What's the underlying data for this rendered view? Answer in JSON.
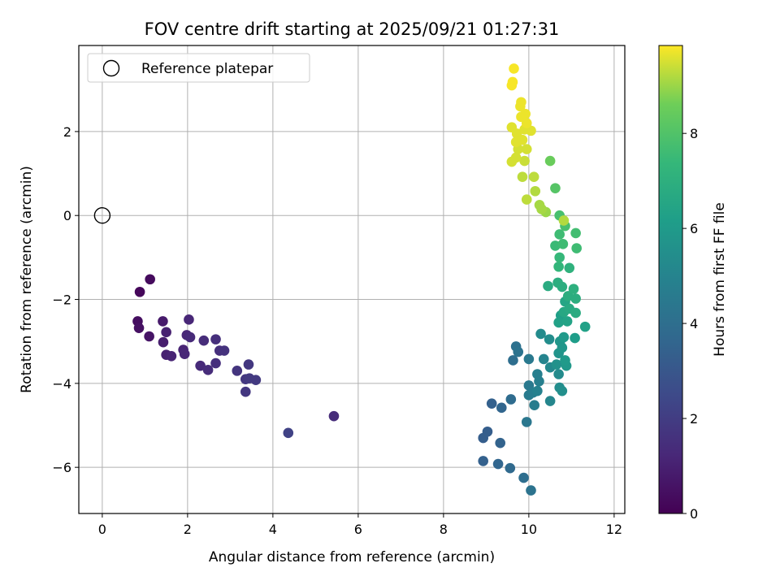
{
  "chart_data": {
    "type": "scatter",
    "title": "FOV centre drift starting at 2025/09/21 01:27:31",
    "xlabel": "Angular distance from reference (arcmin)",
    "ylabel": "Rotation from reference (arcmin)",
    "xlim": [
      -0.55,
      12.25
    ],
    "ylim": [
      -7.1,
      4.05
    ],
    "x_ticks": [
      0,
      2,
      4,
      6,
      8,
      10,
      12
    ],
    "x_tick_labels": [
      "0",
      "2",
      "4",
      "6",
      "8",
      "10",
      "12"
    ],
    "y_ticks": [
      -6,
      -4,
      -2,
      0,
      2
    ],
    "y_tick_labels": [
      "−6",
      "−4",
      "−2",
      "0",
      "2"
    ],
    "grid": true,
    "legend": {
      "placement": "top-left",
      "entries": [
        "Reference platepar"
      ]
    },
    "reference_point": {
      "x": 0,
      "y": 0,
      "label": "Reference platepar"
    },
    "colorbar": {
      "label": "Hours from first FF file",
      "range": [
        0,
        9.85
      ],
      "ticks": [
        0,
        2,
        4,
        6,
        8
      ],
      "tick_labels": [
        "0",
        "2",
        "4",
        "6",
        "8"
      ],
      "colormap": "viridis"
    },
    "series": [
      {
        "name": "Hours from first FF file",
        "points": [
          {
            "x": 0.88,
            "y": -1.82,
            "c": 0.2
          },
          {
            "x": 1.12,
            "y": -1.52,
            "c": 0.3
          },
          {
            "x": 0.83,
            "y": -2.52,
            "c": 0.4
          },
          {
            "x": 0.86,
            "y": -2.68,
            "c": 0.5
          },
          {
            "x": 1.1,
            "y": -2.88,
            "c": 0.6
          },
          {
            "x": 1.42,
            "y": -2.52,
            "c": 0.8
          },
          {
            "x": 1.43,
            "y": -3.02,
            "c": 0.9
          },
          {
            "x": 1.5,
            "y": -2.78,
            "c": 1.0
          },
          {
            "x": 1.5,
            "y": -3.32,
            "c": 1.0
          },
          {
            "x": 1.62,
            "y": -3.35,
            "c": 1.1
          },
          {
            "x": 1.9,
            "y": -3.2,
            "c": 1.1
          },
          {
            "x": 1.93,
            "y": -3.3,
            "c": 1.2
          },
          {
            "x": 2.03,
            "y": -2.48,
            "c": 1.2
          },
          {
            "x": 1.98,
            "y": -2.85,
            "c": 1.2
          },
          {
            "x": 2.06,
            "y": -2.9,
            "c": 1.3
          },
          {
            "x": 2.3,
            "y": -3.58,
            "c": 1.3
          },
          {
            "x": 2.38,
            "y": -2.98,
            "c": 1.4
          },
          {
            "x": 2.48,
            "y": -3.68,
            "c": 1.4
          },
          {
            "x": 2.66,
            "y": -2.95,
            "c": 1.5
          },
          {
            "x": 2.66,
            "y": -3.52,
            "c": 1.5
          },
          {
            "x": 2.75,
            "y": -3.22,
            "c": 1.5
          },
          {
            "x": 2.86,
            "y": -3.22,
            "c": 1.6
          },
          {
            "x": 3.16,
            "y": -3.7,
            "c": 1.7
          },
          {
            "x": 3.36,
            "y": -3.9,
            "c": 1.8
          },
          {
            "x": 3.43,
            "y": -3.55,
            "c": 1.8
          },
          {
            "x": 3.36,
            "y": -4.2,
            "c": 1.8
          },
          {
            "x": 3.45,
            "y": -3.88,
            "c": 1.9
          },
          {
            "x": 3.6,
            "y": -3.92,
            "c": 1.9
          },
          {
            "x": 4.36,
            "y": -5.18,
            "c": 2.2
          },
          {
            "x": 5.43,
            "y": -4.78,
            "c": 1.4
          },
          {
            "x": 8.93,
            "y": -5.3,
            "c": 3.3
          },
          {
            "x": 8.93,
            "y": -5.85,
            "c": 3.4
          },
          {
            "x": 9.03,
            "y": -5.15,
            "c": 3.3
          },
          {
            "x": 9.13,
            "y": -4.48,
            "c": 3.4
          },
          {
            "x": 9.28,
            "y": -5.92,
            "c": 3.6
          },
          {
            "x": 9.33,
            "y": -5.42,
            "c": 3.5
          },
          {
            "x": 9.36,
            "y": -4.58,
            "c": 3.6
          },
          {
            "x": 9.56,
            "y": -6.02,
            "c": 3.8
          },
          {
            "x": 9.58,
            "y": -4.38,
            "c": 3.9
          },
          {
            "x": 9.63,
            "y": -3.45,
            "c": 4.0
          },
          {
            "x": 9.7,
            "y": -3.12,
            "c": 4.1
          },
          {
            "x": 9.75,
            "y": -3.25,
            "c": 4.2
          },
          {
            "x": 9.88,
            "y": -6.25,
            "c": 4.0
          },
          {
            "x": 9.95,
            "y": -4.92,
            "c": 4.4
          },
          {
            "x": 10.0,
            "y": -3.42,
            "c": 4.5
          },
          {
            "x": 10.0,
            "y": -4.05,
            "c": 4.5
          },
          {
            "x": 10.0,
            "y": -4.28,
            "c": 4.6
          },
          {
            "x": 10.05,
            "y": -6.55,
            "c": 4.2
          },
          {
            "x": 10.1,
            "y": -4.22,
            "c": 4.7
          },
          {
            "x": 10.13,
            "y": -4.52,
            "c": 4.7
          },
          {
            "x": 10.2,
            "y": -3.78,
            "c": 4.8
          },
          {
            "x": 10.24,
            "y": -3.95,
            "c": 4.8
          },
          {
            "x": 10.2,
            "y": -4.18,
            "c": 4.9
          },
          {
            "x": 10.28,
            "y": -2.82,
            "c": 5.3
          },
          {
            "x": 10.35,
            "y": -3.42,
            "c": 5.0
          },
          {
            "x": 10.48,
            "y": -2.95,
            "c": 5.4
          },
          {
            "x": 10.5,
            "y": -3.62,
            "c": 5.2
          },
          {
            "x": 10.5,
            "y": -4.42,
            "c": 5.1
          },
          {
            "x": 10.65,
            "y": -3.55,
            "c": 5.6
          },
          {
            "x": 10.7,
            "y": -3.78,
            "c": 5.3
          },
          {
            "x": 10.7,
            "y": -3.28,
            "c": 5.7
          },
          {
            "x": 10.72,
            "y": -4.1,
            "c": 5.4
          },
          {
            "x": 10.78,
            "y": -4.18,
            "c": 5.5
          },
          {
            "x": 10.73,
            "y": -3.0,
            "c": 5.8
          },
          {
            "x": 10.78,
            "y": -3.15,
            "c": 5.8
          },
          {
            "x": 10.82,
            "y": -2.9,
            "c": 6.0
          },
          {
            "x": 10.88,
            "y": -3.58,
            "c": 5.9
          },
          {
            "x": 10.85,
            "y": -3.45,
            "c": 6.0
          },
          {
            "x": 10.75,
            "y": -2.38,
            "c": 6.2
          },
          {
            "x": 10.7,
            "y": -2.55,
            "c": 6.3
          },
          {
            "x": 10.9,
            "y": -2.52,
            "c": 6.4
          },
          {
            "x": 10.85,
            "y": -2.05,
            "c": 6.5
          },
          {
            "x": 11.08,
            "y": -2.92,
            "c": 6.1
          },
          {
            "x": 11.32,
            "y": -2.65,
            "c": 6.3
          },
          {
            "x": 10.45,
            "y": -1.68,
            "c": 6.8
          },
          {
            "x": 10.68,
            "y": -1.6,
            "c": 6.9
          },
          {
            "x": 10.78,
            "y": -1.7,
            "c": 6.9
          },
          {
            "x": 10.82,
            "y": -2.3,
            "c": 6.6
          },
          {
            "x": 10.92,
            "y": -1.92,
            "c": 6.9
          },
          {
            "x": 10.95,
            "y": -2.22,
            "c": 6.7
          },
          {
            "x": 11.05,
            "y": -1.75,
            "c": 7.0
          },
          {
            "x": 11.1,
            "y": -1.98,
            "c": 6.9
          },
          {
            "x": 11.1,
            "y": -2.32,
            "c": 6.8
          },
          {
            "x": 10.95,
            "y": -1.25,
            "c": 7.1
          },
          {
            "x": 10.7,
            "y": -1.22,
            "c": 7.3
          },
          {
            "x": 10.72,
            "y": -1.0,
            "c": 7.4
          },
          {
            "x": 10.62,
            "y": -0.72,
            "c": 7.5
          },
          {
            "x": 10.72,
            "y": -0.45,
            "c": 7.6
          },
          {
            "x": 10.8,
            "y": -0.68,
            "c": 7.6
          },
          {
            "x": 10.85,
            "y": -0.25,
            "c": 7.8
          },
          {
            "x": 10.72,
            "y": 0.0,
            "c": 7.8
          },
          {
            "x": 11.1,
            "y": -0.42,
            "c": 7.7
          },
          {
            "x": 11.12,
            "y": -0.78,
            "c": 7.6
          },
          {
            "x": 10.62,
            "y": 0.65,
            "c": 8.1
          },
          {
            "x": 10.5,
            "y": 1.3,
            "c": 8.5
          },
          {
            "x": 10.82,
            "y": -0.12,
            "c": 9.2
          },
          {
            "x": 10.4,
            "y": 0.08,
            "c": 9.0
          },
          {
            "x": 10.3,
            "y": 0.15,
            "c": 9.1
          },
          {
            "x": 10.25,
            "y": 0.25,
            "c": 9.1
          },
          {
            "x": 10.15,
            "y": 0.58,
            "c": 9.2
          },
          {
            "x": 9.95,
            "y": 0.38,
            "c": 9.3
          },
          {
            "x": 9.85,
            "y": 0.92,
            "c": 9.3
          },
          {
            "x": 10.12,
            "y": 0.92,
            "c": 9.3
          },
          {
            "x": 9.9,
            "y": 1.3,
            "c": 9.4
          },
          {
            "x": 9.6,
            "y": 1.28,
            "c": 9.5
          },
          {
            "x": 9.7,
            "y": 1.38,
            "c": 9.5
          },
          {
            "x": 9.75,
            "y": 1.58,
            "c": 9.5
          },
          {
            "x": 9.95,
            "y": 1.58,
            "c": 9.5
          },
          {
            "x": 9.72,
            "y": 1.95,
            "c": 9.6
          },
          {
            "x": 9.6,
            "y": 2.1,
            "c": 9.6
          },
          {
            "x": 9.7,
            "y": 1.75,
            "c": 9.6
          },
          {
            "x": 9.85,
            "y": 1.8,
            "c": 9.6
          },
          {
            "x": 9.9,
            "y": 2.05,
            "c": 9.6
          },
          {
            "x": 10.05,
            "y": 2.02,
            "c": 9.6
          },
          {
            "x": 9.95,
            "y": 2.2,
            "c": 9.7
          },
          {
            "x": 9.82,
            "y": 2.35,
            "c": 9.7
          },
          {
            "x": 9.92,
            "y": 2.42,
            "c": 9.7
          },
          {
            "x": 9.8,
            "y": 2.6,
            "c": 9.7
          },
          {
            "x": 9.82,
            "y": 2.7,
            "c": 9.7
          },
          {
            "x": 9.6,
            "y": 3.1,
            "c": 9.8
          },
          {
            "x": 9.62,
            "y": 3.18,
            "c": 9.8
          },
          {
            "x": 9.65,
            "y": 3.5,
            "c": 9.8
          }
        ]
      }
    ]
  }
}
